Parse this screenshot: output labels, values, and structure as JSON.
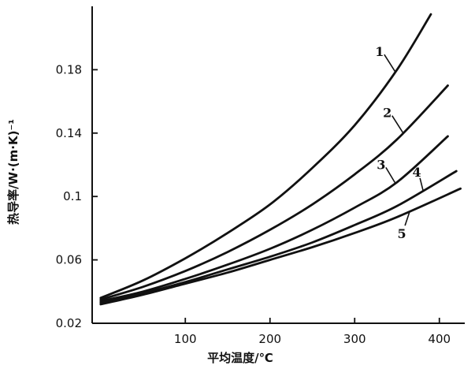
{
  "chart_data": {
    "type": "line",
    "title": "",
    "xlabel": "平均温度/℃",
    "ylabel": "热导率/W·(m·K)⁻¹",
    "xlim": [
      -10,
      430
    ],
    "ylim": [
      0.02,
      0.22
    ],
    "x_ticks": [
      100,
      200,
      300,
      400
    ],
    "y_ticks": [
      0.02,
      0.06,
      0.1,
      0.14,
      0.18
    ],
    "x_tick_labels": [
      "100",
      "200",
      "300",
      "400"
    ],
    "y_tick_labels": [
      "0.02",
      "0.06",
      "0.1",
      "0.14",
      "0.18"
    ],
    "grid": false,
    "legend": "none",
    "series": [
      {
        "label": "1",
        "x": [
          0,
          50,
          100,
          150,
          200,
          250,
          300,
          350,
          390
        ],
        "y": [
          0.036,
          0.047,
          0.061,
          0.077,
          0.095,
          0.118,
          0.145,
          0.18,
          0.215
        ]
      },
      {
        "label": "2",
        "x": [
          0,
          50,
          100,
          150,
          200,
          250,
          300,
          350,
          410
        ],
        "y": [
          0.035,
          0.043,
          0.053,
          0.065,
          0.079,
          0.095,
          0.114,
          0.136,
          0.17
        ]
      },
      {
        "label": "3",
        "x": [
          0,
          50,
          100,
          150,
          200,
          250,
          300,
          350,
          410
        ],
        "y": [
          0.034,
          0.04,
          0.048,
          0.057,
          0.067,
          0.079,
          0.093,
          0.109,
          0.138
        ]
      },
      {
        "label": "4",
        "x": [
          0,
          50,
          100,
          150,
          200,
          250,
          300,
          350,
          420
        ],
        "y": [
          0.033,
          0.039,
          0.046,
          0.054,
          0.062,
          0.071,
          0.082,
          0.094,
          0.116
        ]
      },
      {
        "label": "5",
        "x": [
          0,
          50,
          100,
          150,
          200,
          250,
          300,
          350,
          425
        ],
        "y": [
          0.032,
          0.038,
          0.045,
          0.052,
          0.06,
          0.068,
          0.077,
          0.087,
          0.105
        ]
      }
    ],
    "colors": {
      "ink": "#111111",
      "background": "#ffffff"
    }
  }
}
